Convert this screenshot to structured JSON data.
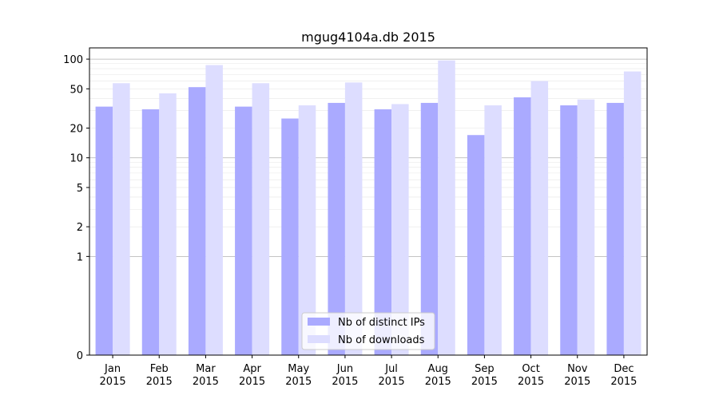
{
  "chart_data": {
    "type": "bar",
    "title": "mgug4104a.db 2015",
    "xlabel": "",
    "ylabel": "",
    "yscale": "symlog",
    "ylim": [
      0,
      130
    ],
    "y_ticks": [
      "0",
      "1",
      "2",
      "5",
      "10",
      "20",
      "50",
      "100"
    ],
    "grid": true,
    "legend_position": "bottom-center",
    "categories": [
      "Jan\n2015",
      "Feb\n2015",
      "Mar\n2015",
      "Apr\n2015",
      "May\n2015",
      "Jun\n2015",
      "Jul\n2015",
      "Aug\n2015",
      "Sep\n2015",
      "Oct\n2015",
      "Nov\n2015",
      "Dec\n2015"
    ],
    "series": [
      {
        "name": "Nb of distinct IPs",
        "color": "#aaaaff",
        "values": [
          33,
          31,
          52,
          33,
          25,
          36,
          31,
          36,
          17,
          41,
          34,
          36
        ]
      },
      {
        "name": "Nb of downloads",
        "color": "#ddddff",
        "values": [
          57,
          45,
          87,
          57,
          34,
          58,
          35,
          97,
          34,
          60,
          39,
          75
        ]
      }
    ]
  }
}
